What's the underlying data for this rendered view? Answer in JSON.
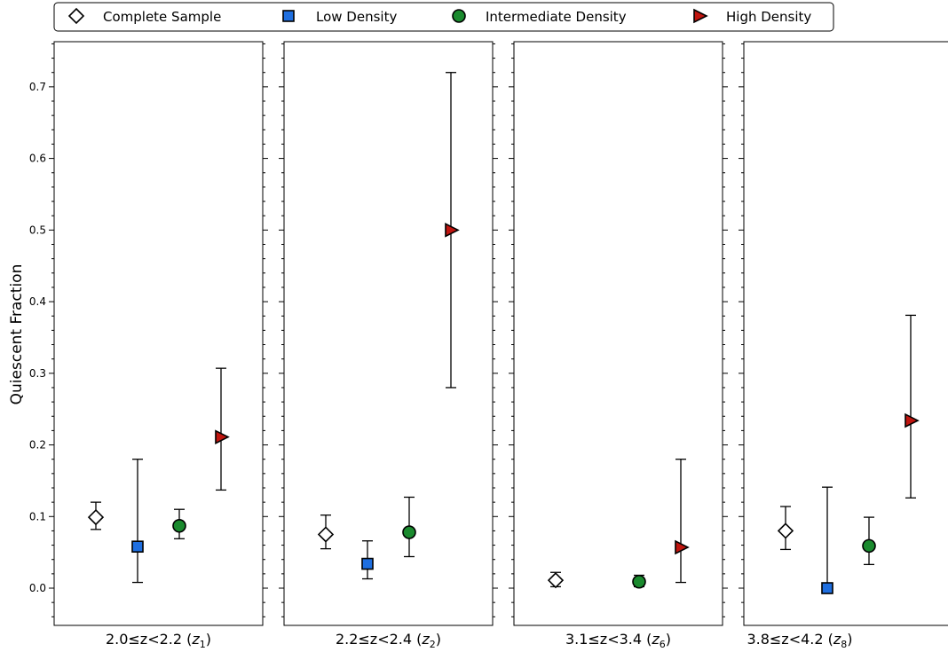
{
  "chart_data": {
    "type": "scatter",
    "ylabel": "Quiescent Fraction",
    "ylim": [
      -0.052,
      0.763
    ],
    "yticks": [
      "0.0",
      "0.1",
      "0.2",
      "0.3",
      "0.4",
      "0.5",
      "0.6",
      "0.7"
    ],
    "legend": {
      "placement": "top",
      "entries": [
        {
          "name": "Complete Sample",
          "marker": "diamond",
          "color": "#ffffff"
        },
        {
          "name": "Low Density",
          "marker": "square",
          "color": "#1f6fe0"
        },
        {
          "name": "Intermediate Density",
          "marker": "circle",
          "color": "#1a8a2e"
        },
        {
          "name": "High Density",
          "marker": "triangle-right",
          "color": "#c0150f"
        }
      ]
    },
    "panels": [
      {
        "label_main": "2.0≤z<2.2 (",
        "label_z": "z",
        "label_sub": "1",
        "label_close": ")",
        "points": [
          {
            "series": "Complete Sample",
            "y": 0.099,
            "err_low": 0.082,
            "err_high": 0.12
          },
          {
            "series": "Low Density",
            "y": 0.058,
            "err_low": 0.008,
            "err_high": 0.18
          },
          {
            "series": "Intermediate Density",
            "y": 0.087,
            "err_low": 0.069,
            "err_high": 0.11
          },
          {
            "series": "High Density",
            "y": 0.211,
            "err_low": 0.137,
            "err_high": 0.307
          }
        ]
      },
      {
        "label_main": "2.2≤z<2.4 (",
        "label_z": "z",
        "label_sub": "2",
        "label_close": ")",
        "points": [
          {
            "series": "Complete Sample",
            "y": 0.075,
            "err_low": 0.055,
            "err_high": 0.102
          },
          {
            "series": "Low Density",
            "y": 0.034,
            "err_low": 0.013,
            "err_high": 0.066
          },
          {
            "series": "Intermediate Density",
            "y": 0.078,
            "err_low": 0.044,
            "err_high": 0.127
          },
          {
            "series": "High Density",
            "y": 0.5,
            "err_low": 0.28,
            "err_high": 0.72
          }
        ]
      },
      {
        "label_main": "3.1≤z<3.4 (",
        "label_z": "z",
        "label_sub": "6",
        "label_close": ")",
        "points": [
          {
            "series": "Complete Sample",
            "y": 0.011,
            "err_low": 0.002,
            "err_high": 0.022
          },
          {
            "series": "Intermediate Density",
            "y": 0.009,
            "err_low": 0.002,
            "err_high": 0.018
          },
          {
            "series": "High Density",
            "y": 0.057,
            "err_low": 0.008,
            "err_high": 0.18
          }
        ]
      },
      {
        "label_main": "3.8≤z<4.2 (",
        "label_z": "z",
        "label_sub": "8",
        "label_close": ")",
        "points": [
          {
            "series": "Complete Sample",
            "y": 0.08,
            "err_low": 0.054,
            "err_high": 0.114
          },
          {
            "series": "Low Density",
            "y": 0.0,
            "err_low": 0.0,
            "err_high": 0.141
          },
          {
            "series": "Intermediate Density",
            "y": 0.059,
            "err_low": 0.033,
            "err_high": 0.099
          },
          {
            "series": "High Density",
            "y": 0.234,
            "err_low": 0.126,
            "err_high": 0.381
          }
        ]
      }
    ]
  }
}
